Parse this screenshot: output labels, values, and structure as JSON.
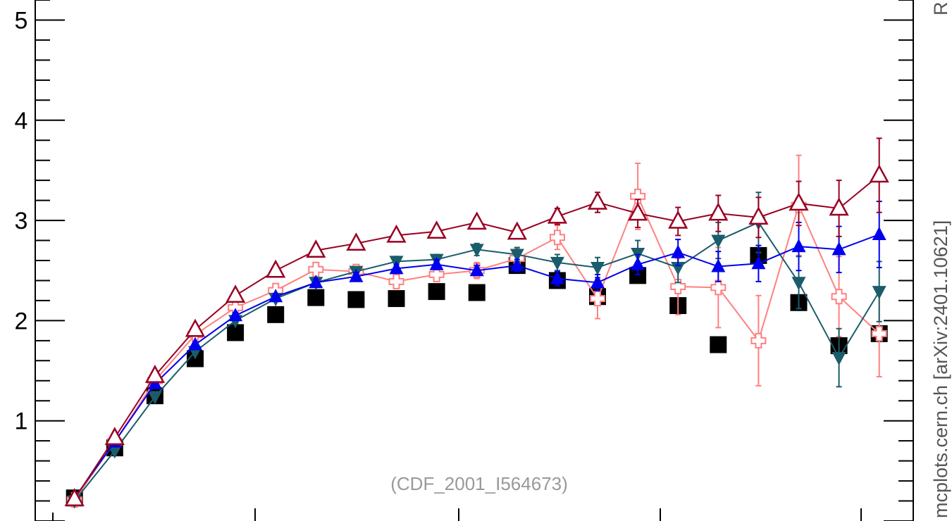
{
  "chart_data": {
    "type": "scatter",
    "x": [
      1,
      2,
      3,
      4,
      5,
      6,
      7,
      8,
      9,
      10,
      11,
      12,
      13,
      14,
      15,
      16,
      17,
      18,
      19,
      20,
      21,
      22
    ],
    "ylim": [
      0,
      5
    ],
    "yticks": [
      1,
      2,
      3,
      4,
      5
    ],
    "ytick_labels": [
      "1",
      "2",
      "3",
      "4",
      "5"
    ],
    "grid": false,
    "annotation": "(CDF_2001_I564673)",
    "side_text": "mcplots.cern.ch [arXiv:2401.10621]",
    "corner_text": "R",
    "series": [
      {
        "marker": "square-filled",
        "color": "#000000",
        "line": false,
        "values": [
          0.23,
          0.73,
          1.25,
          1.62,
          1.88,
          2.06,
          2.23,
          2.21,
          2.22,
          2.29,
          2.28,
          2.55,
          2.4,
          2.24,
          2.45,
          2.15,
          1.76,
          2.65,
          2.18,
          1.75,
          1.87,
          null
        ],
        "errors": [
          0,
          0,
          0,
          0,
          0,
          0,
          0,
          0,
          0,
          0,
          0,
          0,
          0,
          0,
          0,
          0,
          0,
          0,
          0,
          0,
          0,
          null
        ]
      },
      {
        "marker": "triangle-open",
        "color": "#990022",
        "line": true,
        "values": [
          0.22,
          0.83,
          1.45,
          1.91,
          2.25,
          2.5,
          2.7,
          2.77,
          2.85,
          2.89,
          2.98,
          2.88,
          3.04,
          3.18,
          3.07,
          2.99,
          3.07,
          3.03,
          3.17,
          3.12,
          3.45,
          null
        ],
        "errors": [
          0.01,
          0.01,
          0.02,
          0.02,
          0.03,
          0.03,
          0.03,
          0.04,
          0.04,
          0.05,
          0.05,
          0.06,
          0.08,
          0.1,
          0.14,
          0.14,
          0.18,
          0.2,
          0.22,
          0.28,
          0.37,
          null
        ]
      },
      {
        "marker": "cross-open",
        "color": "#ff8080",
        "line": true,
        "values": [
          0.21,
          0.79,
          1.4,
          1.86,
          2.13,
          2.3,
          2.51,
          2.49,
          2.39,
          2.46,
          2.5,
          2.62,
          2.83,
          2.22,
          3.24,
          2.34,
          2.33,
          1.8,
          3.15,
          2.24,
          1.87,
          null
        ],
        "errors": [
          0.01,
          0.01,
          0.02,
          0.02,
          0.03,
          0.03,
          0.04,
          0.04,
          0.05,
          0.06,
          0.08,
          0.1,
          0.12,
          0.2,
          0.33,
          0.28,
          0.4,
          0.45,
          0.5,
          0.4,
          0.43,
          null
        ]
      },
      {
        "marker": "triangle-down-filled",
        "color": "#1a5c6b",
        "line": true,
        "values": [
          0.2,
          0.7,
          1.24,
          1.69,
          2.0,
          2.22,
          2.38,
          2.49,
          2.59,
          2.61,
          2.71,
          2.66,
          2.58,
          2.53,
          2.67,
          2.53,
          2.8,
          2.98,
          2.38,
          1.63,
          2.29,
          null
        ],
        "errors": [
          0.01,
          0.01,
          0.02,
          0.02,
          0.03,
          0.03,
          0.04,
          0.04,
          0.05,
          0.05,
          0.06,
          0.07,
          0.08,
          0.1,
          0.13,
          0.15,
          0.18,
          0.3,
          0.26,
          0.29,
          0.3,
          null
        ]
      },
      {
        "marker": "triangle-filled",
        "color": "#0000ee",
        "line": true,
        "values": [
          0.23,
          0.79,
          1.37,
          1.76,
          2.05,
          2.24,
          2.38,
          2.44,
          2.52,
          2.56,
          2.5,
          2.55,
          2.42,
          2.38,
          2.56,
          2.68,
          2.54,
          2.57,
          2.74,
          2.71,
          2.86,
          null
        ],
        "errors": [
          0.01,
          0.01,
          0.02,
          0.02,
          0.03,
          0.03,
          0.03,
          0.04,
          0.04,
          0.05,
          0.05,
          0.06,
          0.07,
          0.08,
          0.1,
          0.13,
          0.15,
          0.18,
          0.24,
          0.23,
          0.33,
          null
        ]
      }
    ]
  }
}
